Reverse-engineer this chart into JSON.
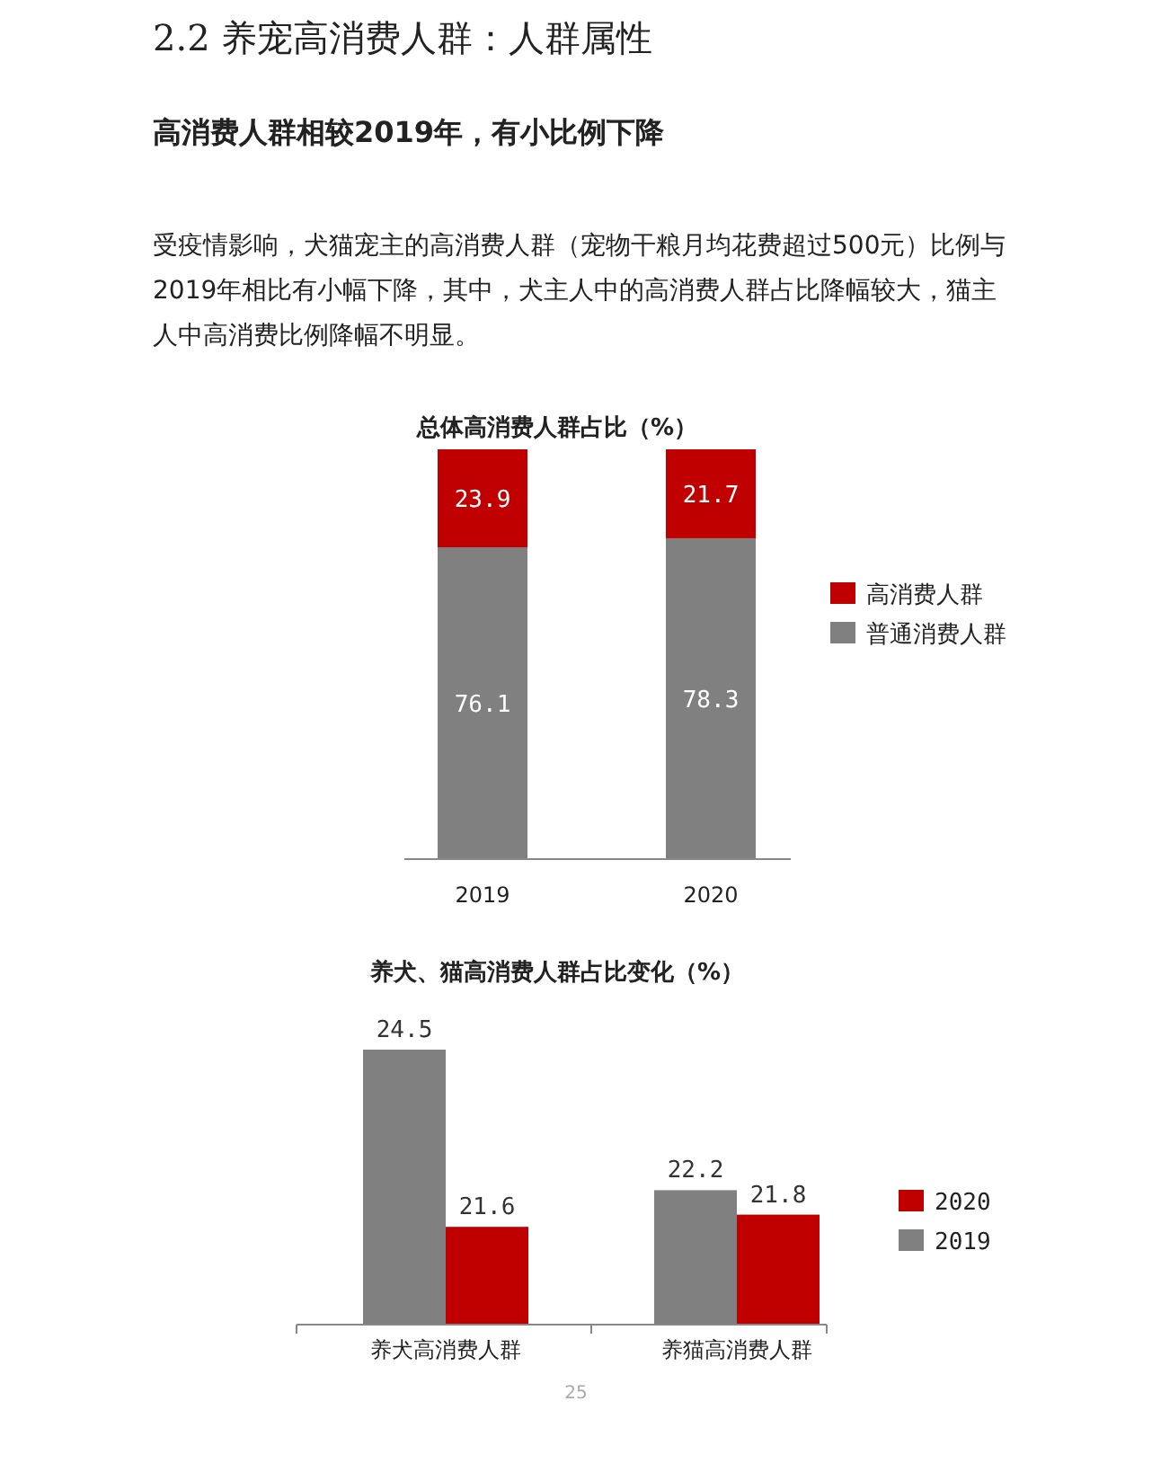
{
  "chart_data": [
    {
      "type": "bar",
      "stacked": true,
      "title": "总体高消费人群占比（%）",
      "annotations": [
        "2.2 养宠高消费人群：人群属性",
        "高消费人群相较2019年，有小比例下降",
        "受疫情影响，犬猫宠主的高消费人群（宠物干粮月均花费超过500元）比例与2019年相比有小幅下降，其中，犬主人中的高消费人群占比降幅较大，猫主人中高消费比例降幅不明显。"
      ],
      "categories": [
        "2019",
        "2020"
      ],
      "series": [
        {
          "name": "普通消费人群",
          "color": "#808080",
          "values": [
            76.1,
            78.3
          ]
        },
        {
          "name": "高消费人群",
          "color": "#c00000",
          "values": [
            23.9,
            21.7
          ]
        }
      ],
      "ylim": [
        0,
        100
      ],
      "data_labels": true,
      "legend": "right"
    },
    {
      "type": "bar",
      "title": "养犬、猫高消费人群占比变化（%）",
      "annotations": [
        "25"
      ],
      "categories": [
        "养犬高消费人群",
        "养猫高消费人群"
      ],
      "series": [
        {
          "name": "2019",
          "color": "#808080",
          "values": [
            24.5,
            22.2
          ]
        },
        {
          "name": "2020",
          "color": "#c00000",
          "values": [
            21.6,
            21.8
          ]
        }
      ],
      "ylim": [
        20,
        24.5
      ],
      "data_labels": true,
      "legend": "right"
    }
  ]
}
